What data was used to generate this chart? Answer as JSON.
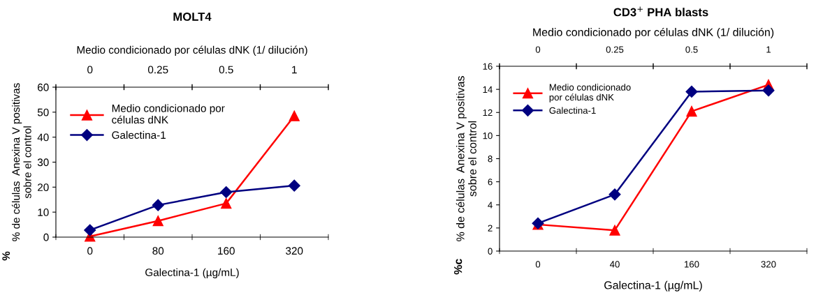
{
  "chart_data": [
    {
      "type": "line",
      "title": "MOLT4",
      "xlabel": "Galectina-1 (µg/mL)",
      "ylabel": "% de células  Anexina V positivas\nsobre el control",
      "x2label": "Medio condicionado por células dNK (1/ dilución)",
      "categories": [
        "0",
        "80",
        "160",
        "320"
      ],
      "ylim": [
        0,
        60
      ],
      "yticks": [
        0,
        10,
        20,
        30,
        40,
        50,
        60
      ],
      "grid": false,
      "legend": "top left",
      "series": [
        {
          "name": "Medio condicionado por\ncélulas dNK",
          "color": "#ff0000",
          "marker": "triangle",
          "values": [
            0.3,
            6.5,
            13.5,
            48.5
          ]
        },
        {
          "name": "Galectina-1",
          "color": "#000080",
          "marker": "diamond",
          "values": [
            2.8,
            12.8,
            18,
            20.6
          ]
        }
      ],
      "annotations": [
        "%",
        "0",
        "0.25",
        "0.5",
        "1"
      ]
    },
    {
      "type": "line",
      "title": "CD3$^{+}$ PHA blasts",
      "xlabel": "Galectina-1 (µg/mL)",
      "ylabel": "% de células  Anexina V positivas\nsobre el control",
      "x2label": "Medio condicionado por células dNK (1/ dilución)",
      "categories": [
        "0",
        "40",
        "160",
        "320"
      ],
      "ylim": [
        0,
        16
      ],
      "yticks": [
        0,
        2,
        4,
        6,
        8,
        10,
        12,
        14,
        16
      ],
      "grid": false,
      "legend": "top left",
      "series": [
        {
          "name": "Medio condicionado\npor células dNK",
          "color": "#ff0000",
          "marker": "triangle",
          "values": [
            2.3,
            1.8,
            12.1,
            14.4
          ]
        },
        {
          "name": "Galectina-1",
          "color": "#000080",
          "marker": "diamond",
          "values": [
            2.4,
            4.9,
            13.8,
            13.9
          ]
        }
      ],
      "annotations": [
        "%c",
        "0",
        "0.25",
        "0.5",
        "1"
      ]
    }
  ]
}
